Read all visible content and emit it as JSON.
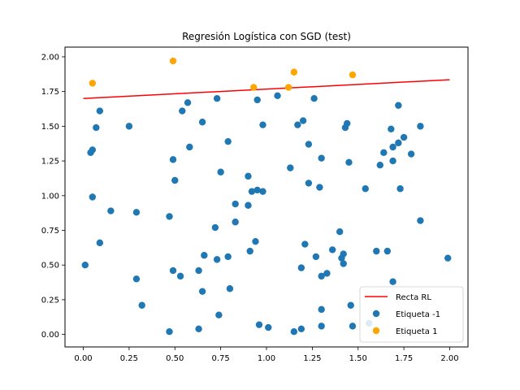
{
  "chart_data": {
    "type": "scatter",
    "title": "Regresión Logística con SGD (test)",
    "xlabel": "",
    "ylabel": "",
    "xlim": [
      -0.1,
      2.1
    ],
    "ylim": [
      -0.09,
      2.07
    ],
    "x_ticks": [
      "0.00",
      "0.25",
      "0.50",
      "0.75",
      "1.00",
      "1.25",
      "1.50",
      "1.75",
      "2.00"
    ],
    "x_tick_values": [
      0,
      0.25,
      0.5,
      0.75,
      1.0,
      1.25,
      1.5,
      1.75,
      2.0
    ],
    "y_ticks": [
      "0.00",
      "0.25",
      "0.50",
      "0.75",
      "1.00",
      "1.25",
      "1.50",
      "1.75",
      "2.00"
    ],
    "y_tick_values": [
      0,
      0.25,
      0.5,
      0.75,
      1.0,
      1.25,
      1.5,
      1.75,
      2.0
    ],
    "grid": false,
    "legend_position": "bottom-right",
    "line": {
      "name": "Recta RL",
      "color": "#ff0000",
      "x": [
        0.0,
        2.0
      ],
      "y": [
        1.7,
        1.835
      ]
    },
    "series": [
      {
        "name": "Etiqueta -1",
        "color": "#1f77b4",
        "points": [
          [
            0.01,
            0.5
          ],
          [
            0.04,
            1.31
          ],
          [
            0.05,
            1.33
          ],
          [
            0.05,
            0.99
          ],
          [
            0.07,
            1.49
          ],
          [
            0.09,
            1.61
          ],
          [
            0.09,
            0.66
          ],
          [
            0.15,
            0.89
          ],
          [
            0.25,
            1.5
          ],
          [
            0.29,
            0.88
          ],
          [
            0.29,
            0.4
          ],
          [
            0.32,
            0.21
          ],
          [
            0.47,
            0.85
          ],
          [
            0.47,
            0.02
          ],
          [
            0.49,
            1.26
          ],
          [
            0.49,
            0.46
          ],
          [
            0.5,
            1.11
          ],
          [
            0.53,
            0.42
          ],
          [
            0.54,
            1.61
          ],
          [
            0.57,
            1.67
          ],
          [
            0.58,
            1.35
          ],
          [
            0.63,
            0.46
          ],
          [
            0.63,
            0.04
          ],
          [
            0.65,
            1.53
          ],
          [
            0.65,
            0.31
          ],
          [
            0.66,
            0.57
          ],
          [
            0.72,
            0.77
          ],
          [
            0.73,
            1.7
          ],
          [
            0.73,
            0.54
          ],
          [
            0.74,
            0.14
          ],
          [
            0.75,
            1.17
          ],
          [
            0.79,
            1.39
          ],
          [
            0.79,
            0.56
          ],
          [
            0.8,
            0.33
          ],
          [
            0.83,
            0.94
          ],
          [
            0.83,
            0.81
          ],
          [
            0.9,
            1.14
          ],
          [
            0.9,
            0.93
          ],
          [
            0.91,
            0.6
          ],
          [
            0.92,
            1.03
          ],
          [
            0.94,
            0.67
          ],
          [
            0.95,
            1.69
          ],
          [
            0.95,
            1.04
          ],
          [
            0.96,
            0.07
          ],
          [
            0.98,
            1.51
          ],
          [
            0.98,
            1.03
          ],
          [
            1.01,
            0.05
          ],
          [
            1.06,
            1.72
          ],
          [
            1.13,
            1.2
          ],
          [
            1.15,
            0.02
          ],
          [
            1.17,
            1.51
          ],
          [
            1.19,
            0.48
          ],
          [
            1.19,
            0.04
          ],
          [
            1.2,
            1.54
          ],
          [
            1.21,
            0.65
          ],
          [
            1.23,
            1.37
          ],
          [
            1.23,
            1.09
          ],
          [
            1.26,
            1.7
          ],
          [
            1.27,
            0.56
          ],
          [
            1.29,
            1.06
          ],
          [
            1.3,
            1.27
          ],
          [
            1.3,
            0.42
          ],
          [
            1.3,
            0.18
          ],
          [
            1.3,
            0.06
          ],
          [
            1.33,
            0.44
          ],
          [
            1.36,
            0.61
          ],
          [
            1.4,
            0.74
          ],
          [
            1.41,
            0.55
          ],
          [
            1.42,
            0.51
          ],
          [
            1.42,
            0.58
          ],
          [
            1.43,
            1.49
          ],
          [
            1.44,
            1.52
          ],
          [
            1.45,
            1.24
          ],
          [
            1.46,
            0.21
          ],
          [
            1.47,
            0.06
          ],
          [
            1.54,
            1.05
          ],
          [
            1.56,
            0.08
          ],
          [
            1.6,
            0.6
          ],
          [
            1.62,
            1.22
          ],
          [
            1.64,
            1.31
          ],
          [
            1.66,
            0.6
          ],
          [
            1.68,
            1.48
          ],
          [
            1.69,
            1.35
          ],
          [
            1.69,
            1.25
          ],
          [
            1.69,
            0.38
          ],
          [
            1.72,
            1.65
          ],
          [
            1.72,
            1.38
          ],
          [
            1.73,
            1.05
          ],
          [
            1.75,
            1.42
          ],
          [
            1.79,
            1.3
          ],
          [
            1.84,
            1.5
          ],
          [
            1.84,
            0.82
          ],
          [
            1.99,
            0.55
          ]
        ]
      },
      {
        "name": "Etiqueta 1",
        "color": "#ffa500",
        "points": [
          [
            0.05,
            1.81
          ],
          [
            0.49,
            1.97
          ],
          [
            0.93,
            1.78
          ],
          [
            1.12,
            1.78
          ],
          [
            1.15,
            1.89
          ],
          [
            1.47,
            1.87
          ]
        ]
      }
    ]
  }
}
